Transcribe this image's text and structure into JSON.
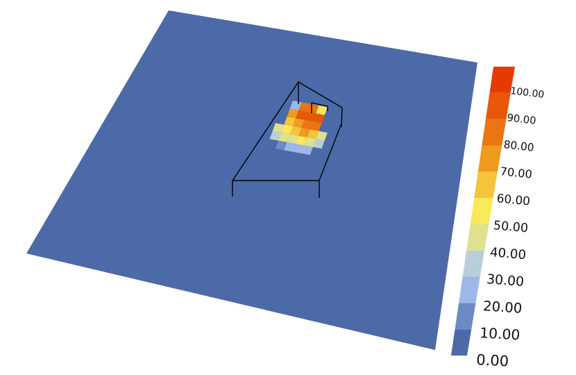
{
  "colormap": {
    "ticks": [
      "0.00",
      "10.00",
      "20.00",
      "30.00",
      "40.00",
      "50.00",
      "60.00",
      "70.00",
      "80.00",
      "90.00",
      "100.00"
    ],
    "colors": [
      "#4c6aa8",
      "#6c8ac4",
      "#9db8e8",
      "#b9cfd8",
      "#dfe28c",
      "#f8e85a",
      "#f5c43a",
      "#f09a1e",
      "#ec7412",
      "#e85808",
      "#e83a00"
    ]
  },
  "plane": {
    "color": "#4c6aa8"
  },
  "heat_cells": [
    {
      "value": 25,
      "grid": [
        0,
        0
      ]
    },
    {
      "value": 85,
      "grid": [
        1,
        0
      ]
    },
    {
      "value": 85,
      "grid": [
        2,
        0
      ]
    },
    {
      "value": 55,
      "grid": [
        3,
        0
      ]
    },
    {
      "value": 75,
      "grid": [
        0,
        1
      ]
    },
    {
      "value": 90,
      "grid": [
        1,
        1
      ]
    },
    {
      "value": 95,
      "grid": [
        2,
        1
      ]
    },
    {
      "value": 95,
      "grid": [
        3,
        1
      ]
    },
    {
      "value": 65,
      "grid": [
        0,
        2
      ]
    },
    {
      "value": 75,
      "grid": [
        1,
        2
      ]
    },
    {
      "value": 85,
      "grid": [
        2,
        2
      ]
    },
    {
      "value": 85,
      "grid": [
        3,
        2
      ]
    },
    {
      "value": 45,
      "grid": [
        -1,
        3
      ]
    },
    {
      "value": 55,
      "grid": [
        0,
        3
      ]
    },
    {
      "value": 65,
      "grid": [
        1,
        3
      ]
    },
    {
      "value": 70,
      "grid": [
        2,
        3
      ]
    },
    {
      "value": 60,
      "grid": [
        3,
        3
      ]
    },
    {
      "value": 40,
      "grid": [
        4,
        3
      ]
    },
    {
      "value": 35,
      "grid": [
        -1,
        4
      ]
    },
    {
      "value": 45,
      "grid": [
        0,
        4
      ]
    },
    {
      "value": 45,
      "grid": [
        1,
        4
      ]
    },
    {
      "value": 50,
      "grid": [
        2,
        4
      ]
    },
    {
      "value": 45,
      "grid": [
        3,
        4
      ]
    },
    {
      "value": 30,
      "grid": [
        4,
        4
      ]
    },
    {
      "value": 15,
      "grid": [
        0,
        5
      ]
    },
    {
      "value": 25,
      "grid": [
        1,
        5
      ]
    },
    {
      "value": 25,
      "grid": [
        2,
        5
      ]
    },
    {
      "value": 20,
      "grid": [
        3,
        5
      ]
    }
  ]
}
